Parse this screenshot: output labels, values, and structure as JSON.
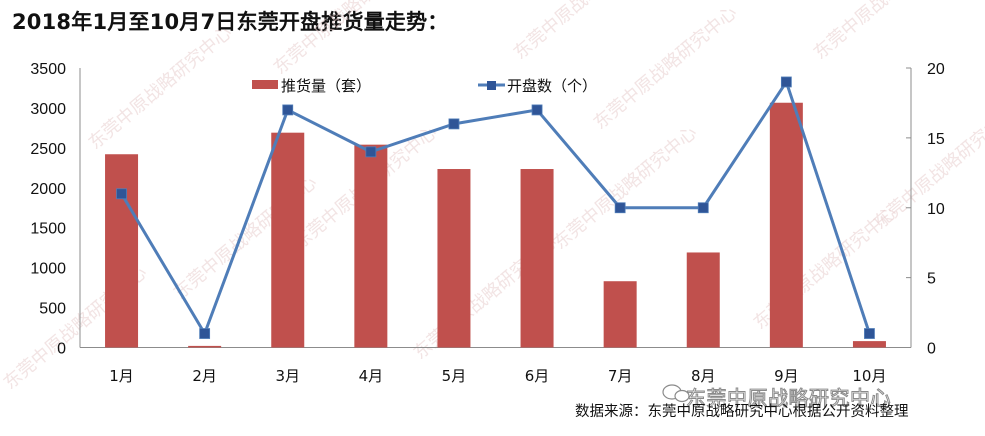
{
  "title": "2018年1月至10月7日东莞开盘推货量走势：",
  "legend": {
    "bar_label": "推货量（套）",
    "line_label": "开盘数（个）"
  },
  "watermark": "东莞中原战略研究中心",
  "brand": "东莞中原战略研究中心",
  "source": "数据来源：东莞中原战略研究中心根据公开资料整理",
  "colors": {
    "bar": "#C0504D",
    "line": "#4F7DB8",
    "marker": "#2F5597",
    "axis": "#8C8C8C"
  },
  "chart_data": {
    "type": "bar",
    "title": "2018年1月至10月7日东莞开盘推货量走势：",
    "categories": [
      "1月",
      "2月",
      "3月",
      "4月",
      "5月",
      "6月",
      "7月",
      "8月",
      "9月",
      "10月"
    ],
    "series": [
      {
        "name": "推货量（套）",
        "type": "bar",
        "axis": "left",
        "values": [
          2420,
          20,
          2690,
          2540,
          2235,
          2235,
          830,
          1190,
          3065,
          80
        ]
      },
      {
        "name": "开盘数（个）",
        "type": "line",
        "axis": "right",
        "values": [
          11,
          1,
          17,
          14,
          16,
          17,
          10,
          10,
          19,
          1
        ]
      }
    ],
    "xlabel": "",
    "ylabel": "",
    "ylim": [
      0,
      3500
    ],
    "yticks": [
      "0",
      "500",
      "1000",
      "1500",
      "2000",
      "2500",
      "3000",
      "3500"
    ],
    "y2lim": [
      0,
      20
    ],
    "y2ticks": [
      "0",
      "5",
      "10",
      "15",
      "20"
    ],
    "grid": false,
    "legend_position": "top"
  }
}
